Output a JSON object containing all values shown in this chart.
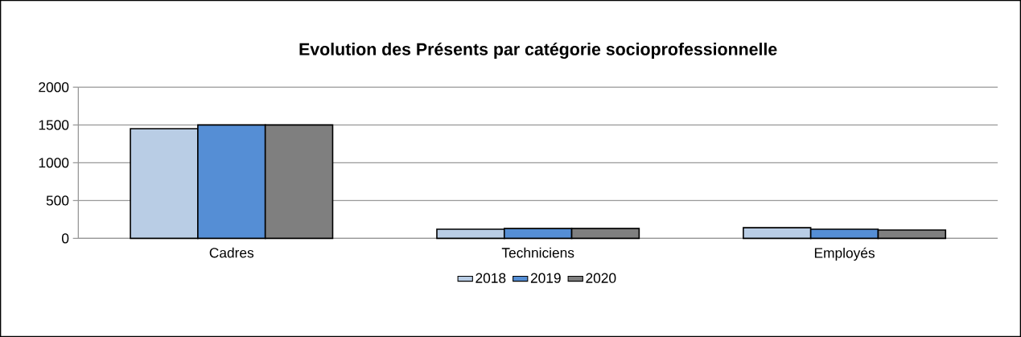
{
  "chart_data": {
    "type": "bar",
    "title": "Evolution des Présents par catégorie socioprofessionnelle",
    "categories": [
      "Cadres",
      "Techniciens",
      "Employés"
    ],
    "series": [
      {
        "name": "2018",
        "color": "#b9cde5",
        "values": [
          1450,
          120,
          140
        ]
      },
      {
        "name": "2019",
        "color": "#558ed5",
        "values": [
          1500,
          130,
          120
        ]
      },
      {
        "name": "2020",
        "color": "#7f7f7f",
        "values": [
          1500,
          130,
          110
        ]
      }
    ],
    "ylim": [
      0,
      2000
    ],
    "yticks": [
      0,
      500,
      1000,
      1500,
      2000
    ],
    "grid": "y",
    "legend": "bottom"
  }
}
